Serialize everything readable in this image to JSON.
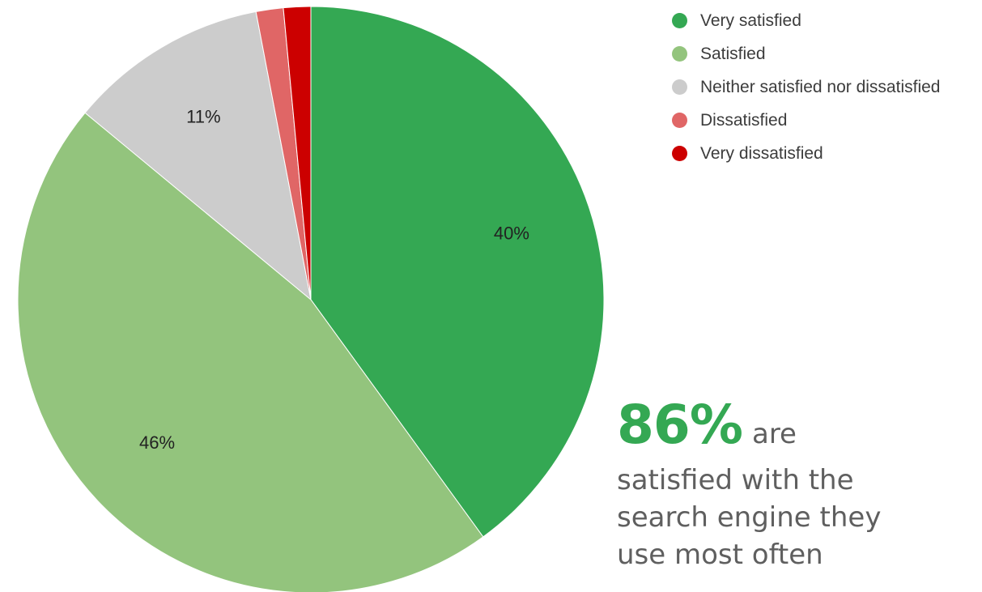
{
  "chart_data": {
    "type": "pie",
    "categories": [
      "Very satisfied",
      "Satisfied",
      "Neither satisfied nor dissatisfied",
      "Dissatisfied",
      "Very dissatisfied"
    ],
    "values": [
      40,
      46,
      11,
      1.5,
      1.5
    ],
    "labels": [
      "40%",
      "46%",
      "11%",
      "",
      ""
    ],
    "colors": [
      "#34a853",
      "#93c47d",
      "#cccccc",
      "#e06666",
      "#cc0000"
    ],
    "legend_position": "top-right",
    "start": "12 o'clock",
    "direction": "clockwise"
  },
  "callout": {
    "big": "86%",
    "word": "are",
    "rest": "satisfied with the search engine they use most often"
  }
}
